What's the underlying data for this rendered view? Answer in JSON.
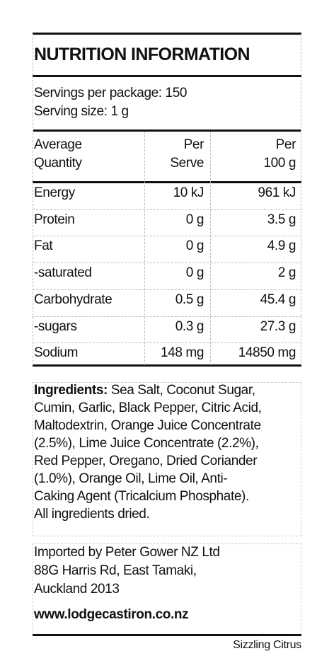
{
  "title": "NUTRITION INFORMATION",
  "servings": [
    "Servings per package: 150",
    "Serving size: 1 g"
  ],
  "table": {
    "header": [
      [
        "Average",
        "Quantity"
      ],
      [
        "Per",
        "Serve"
      ],
      [
        "Per",
        "100 g"
      ]
    ],
    "rows": [
      [
        "Energy",
        "10 kJ",
        "961 kJ"
      ],
      [
        "Protein",
        "0 g",
        "3.5 g"
      ],
      [
        "Fat",
        "0 g",
        "4.9 g"
      ],
      [
        "-saturated",
        "0 g",
        "2 g"
      ],
      [
        "Carbohydrate",
        "0.5 g",
        "45.4 g"
      ],
      [
        "-sugars",
        "0.3 g",
        "27.3 g"
      ],
      [
        "Sodium",
        "148 mg",
        "14850 mg"
      ]
    ]
  },
  "ingredients": {
    "label": "Ingredients:",
    "lines": [
      " Sea Salt, Coconut Sugar,",
      "Cumin, Garlic, Black Pepper, Citric Acid,",
      "Maltodextrin, Orange Juice Concentrate",
      "(2.5%), Lime Juice Concentrate (2.2%),",
      "Red Pepper, Oregano, Dried Coriander",
      "(1.0%), Orange Oil, Lime Oil, Anti-",
      "Caking Agent (Tricalcium Phosphate).",
      "All ingredients dried."
    ]
  },
  "importer": [
    "Imported by Peter Gower NZ Ltd",
    "88G Harris Rd, East Tamaki,",
    "Auckland 2013"
  ],
  "website": "www.lodgecastiron.co.nz",
  "product": "Sizzling Citrus"
}
